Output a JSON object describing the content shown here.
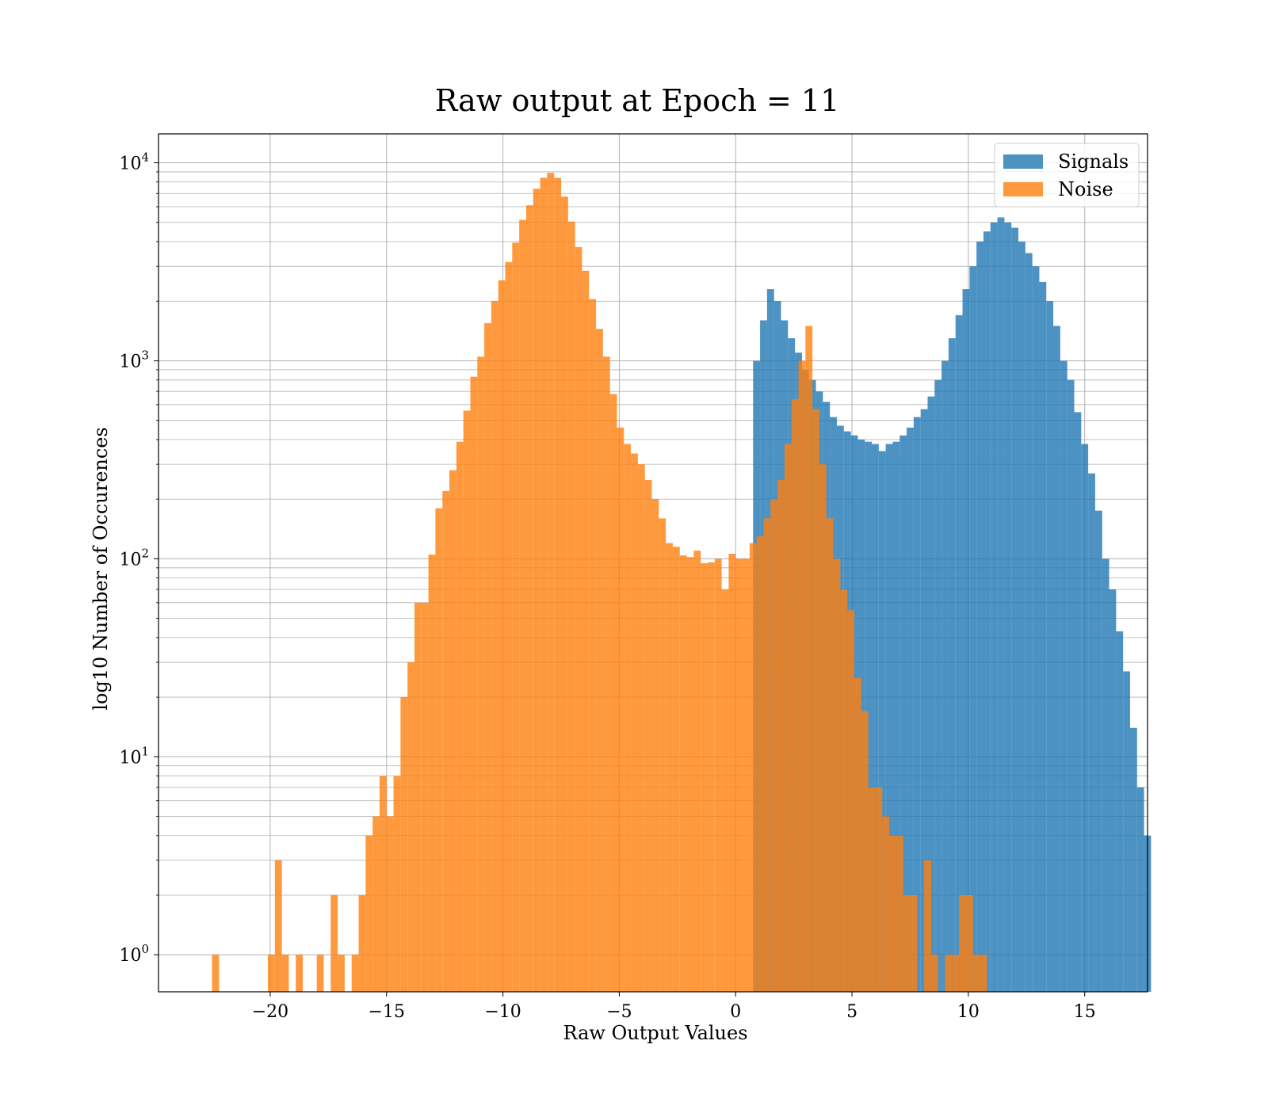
{
  "chart_data": {
    "type": "bar",
    "title": "Raw output at Epoch = 11",
    "xlabel": "Raw Output Values",
    "ylabel": "log10 Number of Occurences",
    "xlim": [
      -24.8,
      17.7
    ],
    "ylim": [
      0.65,
      14000
    ],
    "yscale": "log",
    "grid": true,
    "legend_position": "top-right",
    "xticks": [
      -20,
      -15,
      -10,
      -5,
      0,
      5,
      10,
      15
    ],
    "xtick_labels": [
      "−20",
      "−15",
      "−10",
      "−5",
      "0",
      "5",
      "10",
      "15"
    ],
    "yticks": [
      1,
      10,
      100,
      1000,
      10000
    ],
    "ytick_labels": [
      {
        "base": "10",
        "exp": "0"
      },
      {
        "base": "10",
        "exp": "1"
      },
      {
        "base": "10",
        "exp": "2"
      },
      {
        "base": "10",
        "exp": "3"
      },
      {
        "base": "10",
        "exp": "4"
      }
    ],
    "bin_width": 0.3,
    "series": [
      {
        "name": "Signals",
        "color": "#1f77b4",
        "opacity": 0.8,
        "bin_start": 0.75,
        "values": [
          1000,
          1600,
          2300,
          2000,
          1600,
          1300,
          1100,
          900,
          800,
          700,
          620,
          520,
          470,
          440,
          420,
          400,
          390,
          380,
          350,
          380,
          390,
          420,
          460,
          520,
          570,
          660,
          800,
          1000,
          1300,
          1700,
          2300,
          3000,
          4000,
          4500,
          5000,
          5300,
          5000,
          4700,
          4000,
          3500,
          3000,
          2500,
          2000,
          1500,
          1000,
          800,
          550,
          380,
          270,
          175,
          100,
          70,
          43,
          27,
          14,
          7,
          4
        ]
      },
      {
        "name": "Noise",
        "color": "#ff7f0e",
        "opacity": 0.8,
        "bin_start": -22.5,
        "values": [
          1,
          0,
          0,
          0,
          0,
          0,
          0,
          0,
          1,
          3,
          1,
          0,
          1,
          0,
          0,
          1,
          0,
          2,
          1,
          0,
          1,
          2,
          4,
          5,
          8,
          5,
          8,
          20,
          30,
          60,
          60,
          105,
          180,
          220,
          280,
          390,
          560,
          830,
          1050,
          1550,
          2000,
          2550,
          3150,
          3950,
          5150,
          6100,
          7400,
          8400,
          8900,
          8400,
          6750,
          5050,
          3750,
          2850,
          2050,
          1450,
          1050,
          680,
          460,
          380,
          340,
          300,
          250,
          200,
          160,
          120,
          115,
          104,
          102,
          110,
          95,
          96,
          100,
          70,
          106,
          100,
          100,
          120,
          130,
          160,
          200,
          250,
          380,
          640,
          1000,
          1500,
          570,
          300,
          160,
          100,
          70,
          55,
          25,
          17,
          7,
          7,
          5,
          4,
          4,
          2,
          2,
          0,
          3,
          1,
          0,
          1,
          1,
          2,
          2,
          1,
          1
        ]
      }
    ]
  }
}
